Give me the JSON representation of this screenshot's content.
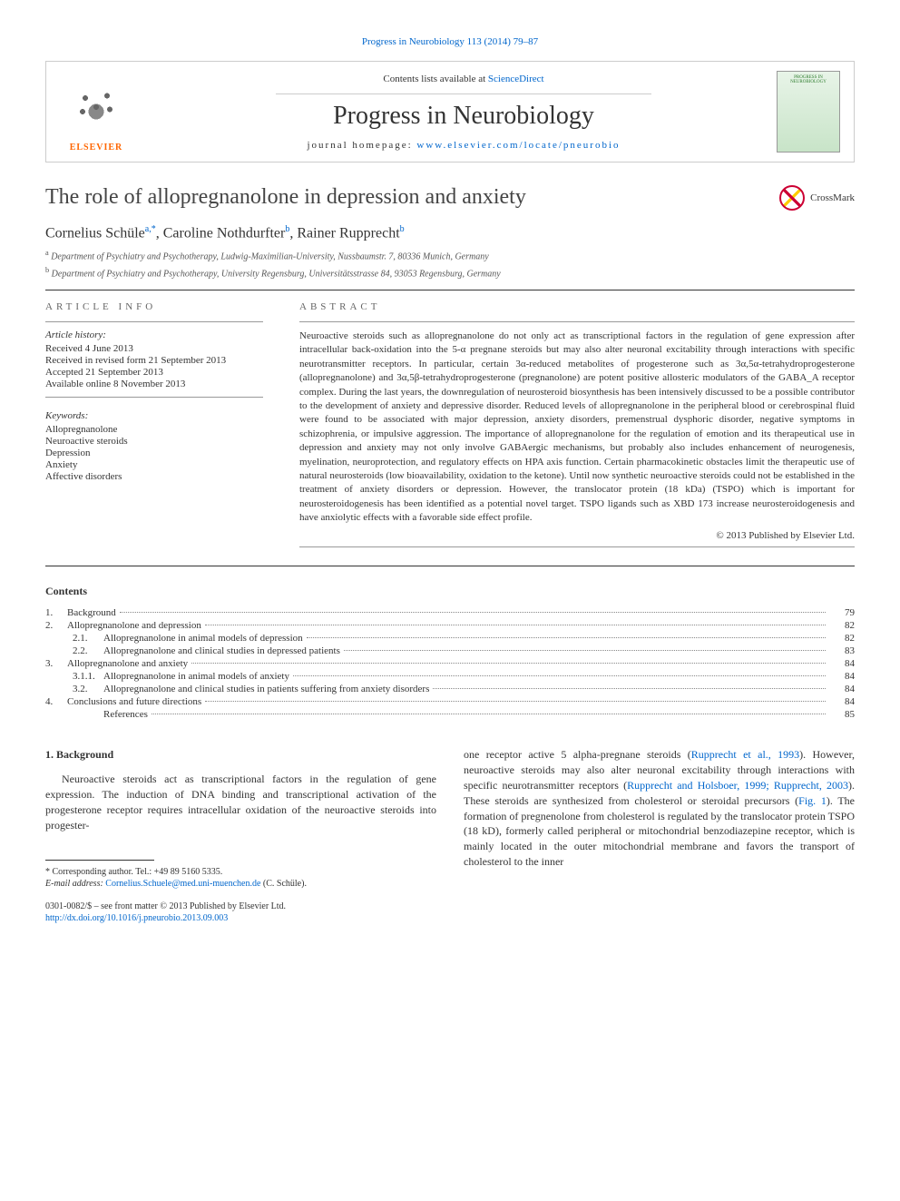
{
  "top_link": "Progress in Neurobiology 113 (2014) 79–87",
  "header": {
    "contents_avail": "Contents lists available at",
    "sciencedirect": "ScienceDirect",
    "journal_name": "Progress in Neurobiology",
    "homepage_label": "journal homepage:",
    "homepage_url": "www.elsevier.com/locate/pneurobio",
    "publisher": "ELSEVIER",
    "cover_text": "PROGRESS IN NEUROBIOLOGY"
  },
  "article": {
    "title": "The role of allopregnanolone in depression and anxiety",
    "crossmark": "CrossMark",
    "authors_html": "Cornelius Schüle",
    "author1": "Cornelius Schüle",
    "author1_sup": "a,*",
    "author2": "Caroline Nothdurfter",
    "author2_sup": "b",
    "author3": "Rainer Rupprecht",
    "author3_sup": "b",
    "affil_a_sup": "a",
    "affil_a": "Department of Psychiatry and Psychotherapy, Ludwig-Maximilian-University, Nussbaumstr. 7, 80336 Munich, Germany",
    "affil_b_sup": "b",
    "affil_b": "Department of Psychiatry and Psychotherapy, University Regensburg, Universitätsstrasse 84, 93053 Regensburg, Germany"
  },
  "info": {
    "heading_left": "ARTICLE INFO",
    "heading_right": "ABSTRACT",
    "history_label": "Article history:",
    "history": [
      "Received 4 June 2013",
      "Received in revised form 21 September 2013",
      "Accepted 21 September 2013",
      "Available online 8 November 2013"
    ],
    "keywords_label": "Keywords:",
    "keywords": [
      "Allopregnanolone",
      "Neuroactive steroids",
      "Depression",
      "Anxiety",
      "Affective disorders"
    ],
    "abstract": "Neuroactive steroids such as allopregnanolone do not only act as transcriptional factors in the regulation of gene expression after intracellular back-oxidation into the 5-α pregnane steroids but may also alter neuronal excitability through interactions with specific neurotransmitter receptors. In particular, certain 3α-reduced metabolites of progesterone such as 3α,5α-tetrahydroprogesterone (allopregnanolone) and 3α,5β-tetrahydroprogesterone (pregnanolone) are potent positive allosteric modulators of the GABA_A receptor complex. During the last years, the downregulation of neurosteroid biosynthesis has been intensively discussed to be a possible contributor to the development of anxiety and depressive disorder. Reduced levels of allopregnanolone in the peripheral blood or cerebrospinal fluid were found to be associated with major depression, anxiety disorders, premenstrual dysphoric disorder, negative symptoms in schizophrenia, or impulsive aggression. The importance of allopregnanolone for the regulation of emotion and its therapeutical use in depression and anxiety may not only involve GABAergic mechanisms, but probably also includes enhancement of neurogenesis, myelination, neuroprotection, and regulatory effects on HPA axis function. Certain pharmacokinetic obstacles limit the therapeutic use of natural neurosteroids (low bioavailability, oxidation to the ketone). Until now synthetic neuroactive steroids could not be established in the treatment of anxiety disorders or depression. However, the translocator protein (18 kDa) (TSPO) which is important for neurosteroidogenesis has been identified as a potential novel target. TSPO ligands such as XBD 173 increase neurosteroidogenesis and have anxiolytic effects with a favorable side effect profile.",
    "copyright": "© 2013 Published by Elsevier Ltd."
  },
  "contents": {
    "heading": "Contents",
    "items": [
      {
        "num": "1.",
        "title": "Background",
        "page": "79",
        "sub": false
      },
      {
        "num": "2.",
        "title": "Allopregnanolone and depression",
        "page": "82",
        "sub": false
      },
      {
        "num": "2.1.",
        "title": "Allopregnanolone in animal models of depression",
        "page": "82",
        "sub": true
      },
      {
        "num": "2.2.",
        "title": "Allopregnanolone and clinical studies in depressed patients",
        "page": "83",
        "sub": true
      },
      {
        "num": "3.",
        "title": "Allopregnanolone and anxiety",
        "page": "84",
        "sub": false
      },
      {
        "num": "3.1.1.",
        "title": "Allopregnanolone in animal models of anxiety",
        "page": "84",
        "sub": true
      },
      {
        "num": "3.2.",
        "title": "Allopregnanolone and clinical studies in patients suffering from anxiety disorders",
        "page": "84",
        "sub": true
      },
      {
        "num": "4.",
        "title": "Conclusions and future directions",
        "page": "84",
        "sub": false
      },
      {
        "num": "",
        "title": "References",
        "page": "85",
        "sub": true
      }
    ]
  },
  "body": {
    "section_heading": "1. Background",
    "col1_p1": "Neuroactive steroids act as transcriptional factors in the regulation of gene expression. The induction of DNA binding and transcriptional activation of the progesterone receptor requires intracellular oxidation of the neuroactive steroids into progester-",
    "col2_p1_a": "one receptor active 5 alpha-pregnane steroids (",
    "col2_p1_link1": "Rupprecht et al., 1993",
    "col2_p1_b": "). However, neuroactive steroids may also alter neuronal excitability through interactions with specific neurotransmitter receptors (",
    "col2_p1_link2": "Rupprecht and Holsboer, 1999; Rupprecht, 2003",
    "col2_p1_c": "). These steroids are synthesized from cholesterol or steroidal precursors (",
    "col2_p1_link3": "Fig. 1",
    "col2_p1_d": "). The formation of pregnenolone from cholesterol is regulated by the translocator protein TSPO (18 kD), formerly called peripheral or mitochondrial benzodiazepine receptor, which is mainly located in the outer mitochondrial membrane and favors the transport of cholesterol to the inner"
  },
  "footnotes": {
    "corr": "* Corresponding author. Tel.: +49 89 5160 5335.",
    "email_label": "E-mail address:",
    "email": "Cornelius.Schuele@med.uni-muenchen.de",
    "email_name": "(C. Schüle).",
    "front_matter": "0301-0082/$ – see front matter © 2013 Published by Elsevier Ltd.",
    "doi": "http://dx.doi.org/10.1016/j.pneurobio.2013.09.003"
  }
}
